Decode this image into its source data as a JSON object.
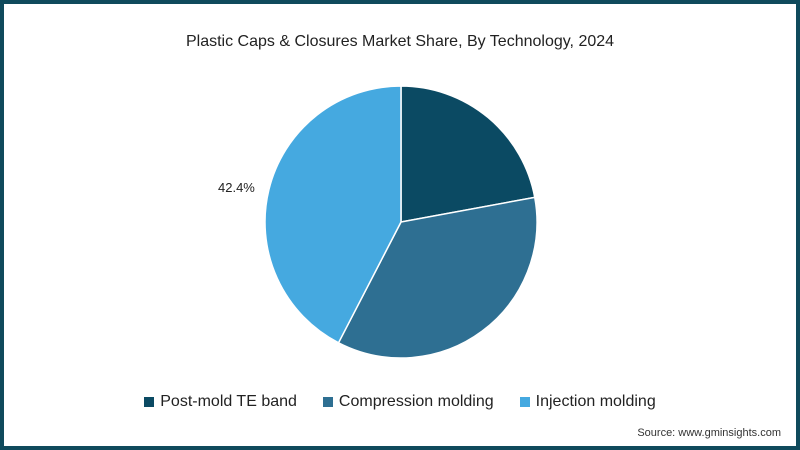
{
  "chart_data": {
    "type": "pie",
    "title": "Plastic Caps & Closures Market Share, By Technology, 2024",
    "categories": [
      "Post-mold TE band",
      "Compression molding",
      "Injection molding"
    ],
    "values": [
      22.1,
      35.5,
      42.4
    ],
    "colors": [
      "#0b4a63",
      "#2e6f92",
      "#45a9e0"
    ],
    "data_labels": [
      {
        "category": "Injection molding",
        "text": "42.4%"
      }
    ],
    "start_angle_deg": 0,
    "direction": "clockwise",
    "legend_position": "bottom",
    "source": "Source: www.gminsights.com"
  },
  "title": "Plastic Caps & Closures Market Share, By Technology, 2024",
  "labels": {
    "injection": "42.4%"
  },
  "legend": [
    {
      "label": "Post-mold TE band",
      "color": "#0b4a63"
    },
    {
      "label": "Compression molding",
      "color": "#2e6f92"
    },
    {
      "label": "Injection molding",
      "color": "#45a9e0"
    }
  ],
  "source": "Source: www.gminsights.com",
  "colors": {
    "border": "#0f4a5c",
    "background": "#ffffff"
  }
}
